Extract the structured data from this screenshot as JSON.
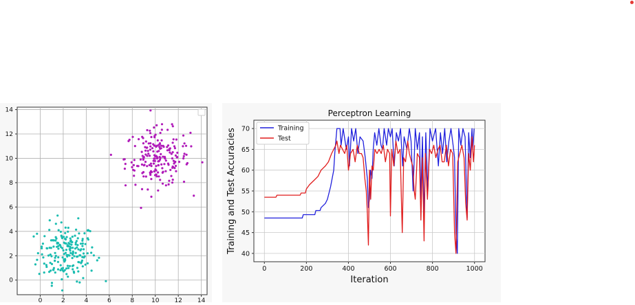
{
  "chart_data": [
    {
      "type": "scatter",
      "title": "",
      "xlabel": "",
      "ylabel": "",
      "xlim": [
        -2,
        14.5
      ],
      "ylim": [
        -1.2,
        14.2
      ],
      "x_ticks": [
        "0",
        "2",
        "4",
        "6",
        "8",
        "10",
        "12",
        "14"
      ],
      "y_ticks": [
        "0",
        "2",
        "4",
        "6",
        "8",
        "10",
        "12",
        "14"
      ],
      "grid": true,
      "legend": "top-right (empty)",
      "series": [
        {
          "color": "#1abcb0",
          "center": [
            2.3,
            2.3
          ],
          "spread": [
            1.25,
            1.2
          ],
          "count": 200
        },
        {
          "color": "#b01bb9",
          "center": [
            10.2,
            10.0
          ],
          "spread": [
            1.4,
            1.2
          ],
          "count": 200
        }
      ]
    },
    {
      "type": "line",
      "title": "Perceptron Learning",
      "xlabel": "Iteration",
      "ylabel": "Training and Test Accuracies",
      "xlim": [
        -50,
        1050
      ],
      "ylim": [
        38,
        72
      ],
      "x_ticks": [
        "0",
        "200",
        "400",
        "600",
        "800",
        "1000"
      ],
      "y_ticks": [
        "40",
        "45",
        "50",
        "55",
        "60",
        "65",
        "70"
      ],
      "grid": true,
      "legend": "top-left",
      "series": [
        {
          "name": "Training",
          "color": "#1f1fdc",
          "points": [
            [
              0,
              48.5
            ],
            [
              180,
              48.5
            ],
            [
              185,
              49.3
            ],
            [
              240,
              49.3
            ],
            [
              245,
              50.3
            ],
            [
              265,
              50.3
            ],
            [
              270,
              51
            ],
            [
              290,
              52
            ],
            [
              300,
              53
            ],
            [
              315,
              56
            ],
            [
              330,
              60
            ],
            [
              335,
              64
            ],
            [
              345,
              70
            ],
            [
              360,
              70
            ],
            [
              365,
              66
            ],
            [
              375,
              70
            ],
            [
              390,
              65
            ],
            [
              400,
              68
            ],
            [
              405,
              61
            ],
            [
              415,
              70
            ],
            [
              425,
              67
            ],
            [
              435,
              70
            ],
            [
              445,
              64
            ],
            [
              455,
              68
            ],
            [
              470,
              67
            ],
            [
              480,
              63
            ],
            [
              490,
              58
            ],
            [
              495,
              51
            ],
            [
              500,
              53
            ],
            [
              505,
              60
            ],
            [
              512,
              58
            ],
            [
              518,
              65
            ],
            [
              525,
              69
            ],
            [
              535,
              66
            ],
            [
              545,
              70
            ],
            [
              555,
              66
            ],
            [
              562,
              65
            ],
            [
              570,
              70
            ],
            [
              582,
              66
            ],
            [
              590,
              70
            ],
            [
              600,
              68
            ],
            [
              608,
              70
            ],
            [
              618,
              61
            ],
            [
              628,
              69
            ],
            [
              638,
              67
            ],
            [
              648,
              70
            ],
            [
              658,
              61
            ],
            [
              665,
              68
            ],
            [
              678,
              65
            ],
            [
              690,
              70
            ],
            [
              698,
              67
            ],
            [
              708,
              55
            ],
            [
              718,
              70
            ],
            [
              728,
              65
            ],
            [
              738,
              69
            ],
            [
              745,
              53
            ],
            [
              752,
              68
            ],
            [
              760,
              49
            ],
            [
              768,
              69
            ],
            [
              778,
              55
            ],
            [
              788,
              70
            ],
            [
              800,
              67
            ],
            [
              815,
              70
            ],
            [
              828,
              61
            ],
            [
              838,
              69
            ],
            [
              848,
              64
            ],
            [
              858,
              70
            ],
            [
              868,
              62
            ],
            [
              878,
              67
            ],
            [
              888,
              70
            ],
            [
              898,
              66
            ],
            [
              905,
              63
            ],
            [
              912,
              45
            ],
            [
              918,
              40
            ],
            [
              925,
              70
            ],
            [
              935,
              66
            ],
            [
              945,
              70
            ],
            [
              955,
              68
            ],
            [
              965,
              48.5
            ],
            [
              972,
              69
            ],
            [
              980,
              63
            ],
            [
              988,
              70
            ],
            [
              992,
              65
            ],
            [
              998,
              70
            ]
          ]
        },
        {
          "name": "Test",
          "color": "#e01b1b",
          "points": [
            [
              0,
              53.5
            ],
            [
              55,
              53.5
            ],
            [
              60,
              54
            ],
            [
              170,
              54
            ],
            [
              175,
              54.5
            ],
            [
              195,
              54.5
            ],
            [
              200,
              55.5
            ],
            [
              215,
              56.5
            ],
            [
              235,
              57.5
            ],
            [
              255,
              58.5
            ],
            [
              270,
              60
            ],
            [
              290,
              61
            ],
            [
              305,
              62
            ],
            [
              320,
              64
            ],
            [
              330,
              65
            ],
            [
              340,
              66
            ],
            [
              345,
              67
            ],
            [
              355,
              64
            ],
            [
              362,
              66
            ],
            [
              372,
              65
            ],
            [
              382,
              64
            ],
            [
              392,
              66
            ],
            [
              400,
              60
            ],
            [
              410,
              64
            ],
            [
              422,
              65
            ],
            [
              432,
              62
            ],
            [
              442,
              66
            ],
            [
              452,
              64
            ],
            [
              462,
              64
            ],
            [
              470,
              63
            ],
            [
              478,
              58
            ],
            [
              485,
              55
            ],
            [
              490,
              50
            ],
            [
              495,
              42
            ],
            [
              500,
              60
            ],
            [
              506,
              53
            ],
            [
              512,
              61
            ],
            [
              518,
              60
            ],
            [
              526,
              65
            ],
            [
              536,
              64
            ],
            [
              546,
              65
            ],
            [
              556,
              64
            ],
            [
              566,
              66
            ],
            [
              576,
              62
            ],
            [
              586,
              65
            ],
            [
              596,
              64
            ],
            [
              600,
              49
            ],
            [
              606,
              65
            ],
            [
              616,
              61
            ],
            [
              626,
              67
            ],
            [
              636,
              64
            ],
            [
              646,
              65
            ],
            [
              656,
              45
            ],
            [
              663,
              63
            ],
            [
              672,
              62
            ],
            [
              682,
              67
            ],
            [
              690,
              64
            ],
            [
              700,
              62
            ],
            [
              706,
              61
            ],
            [
              713,
              55
            ],
            [
              718,
              53
            ],
            [
              728,
              64
            ],
            [
              738,
              63
            ],
            [
              745,
              48
            ],
            [
              752,
              63
            ],
            [
              760,
              43
            ],
            [
              766,
              64
            ],
            [
              776,
              53
            ],
            [
              786,
              65
            ],
            [
              796,
              64
            ],
            [
              806,
              66
            ],
            [
              816,
              63
            ],
            [
              826,
              65
            ],
            [
              836,
              66
            ],
            [
              846,
              62
            ],
            [
              856,
              62
            ],
            [
              866,
              66
            ],
            [
              876,
              61
            ],
            [
              886,
              65
            ],
            [
              896,
              64
            ],
            [
              905,
              45
            ],
            [
              912,
              40
            ],
            [
              920,
              62
            ],
            [
              930,
              64
            ],
            [
              940,
              66
            ],
            [
              950,
              63
            ],
            [
              958,
              52
            ],
            [
              965,
              48
            ],
            [
              972,
              64
            ],
            [
              980,
              60
            ],
            [
              988,
              68
            ],
            [
              995,
              62
            ],
            [
              1000,
              66
            ]
          ]
        }
      ]
    }
  ]
}
